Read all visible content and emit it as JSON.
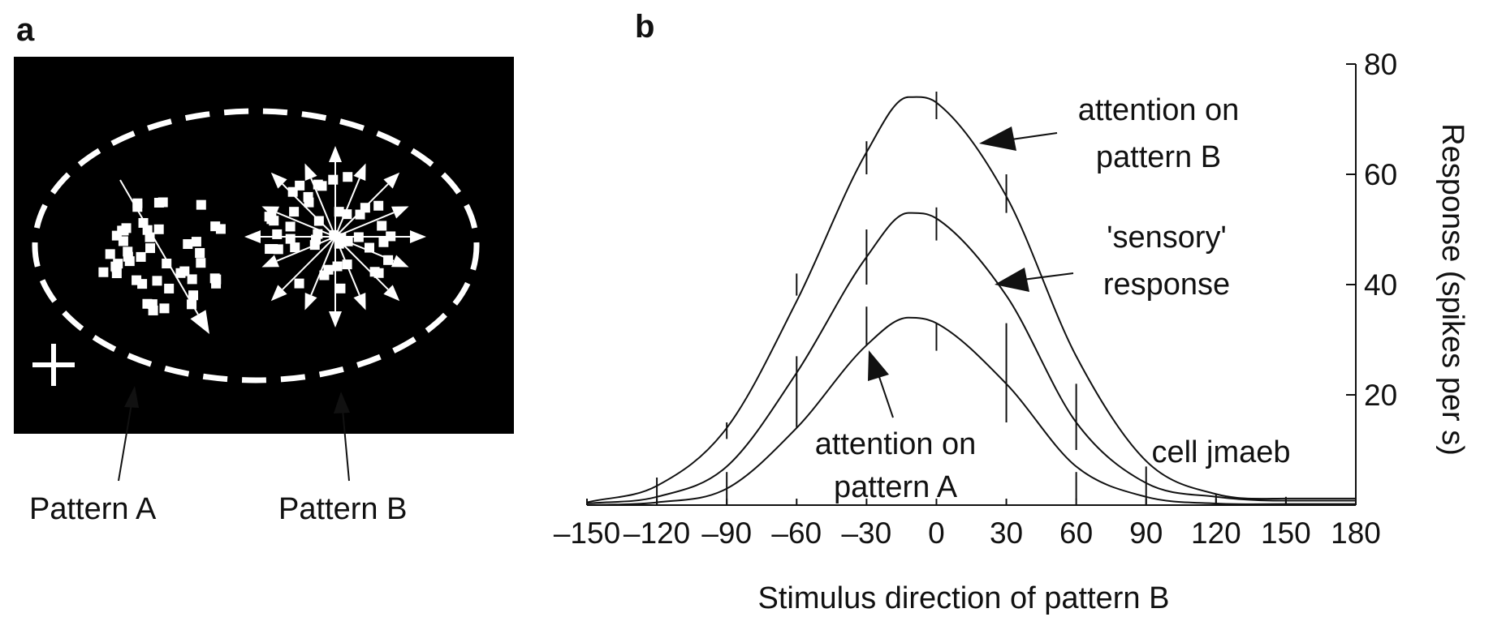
{
  "panel_a": {
    "letter": "a",
    "pattern_a_label": "Pattern A",
    "pattern_b_label": "Pattern B"
  },
  "panel_b": {
    "letter": "b",
    "annotations": {
      "attention_b": [
        "attention on",
        "pattern B"
      ],
      "sensory": [
        "'sensory'",
        "response"
      ],
      "attention_a": [
        "attention on",
        "pattern A"
      ],
      "cell": "cell jmaeb"
    }
  },
  "chart_data": {
    "type": "line",
    "title": "",
    "xlabel": "Stimulus direction of pattern B",
    "ylabel": "Response (spikes per s)",
    "xlim": [
      -150,
      180
    ],
    "ylim": [
      0,
      80
    ],
    "x_ticks": [
      -150,
      -120,
      -90,
      -60,
      -30,
      0,
      30,
      60,
      90,
      120,
      150,
      180
    ],
    "x_tick_labels": [
      "–150",
      "–120",
      "–90",
      "–60",
      "–30",
      "0",
      "30",
      "60",
      "90",
      "120",
      "150",
      "180"
    ],
    "y_ticks": [
      20,
      40,
      60,
      80
    ],
    "y_tick_labels": [
      "20",
      "40",
      "60",
      "80"
    ],
    "y_axis_side": "right",
    "grid": false,
    "series": [
      {
        "name": "attention on pattern B",
        "x": [
          -150,
          -120,
          -90,
          -60,
          -30,
          -12,
          0,
          30,
          60,
          90,
          120,
          150,
          180
        ],
        "y": [
          0.5,
          3.5,
          14,
          37,
          64,
          74,
          73,
          56,
          27,
          8,
          2,
          1.2,
          1.2
        ]
      },
      {
        "name": "'sensory' response",
        "x": [
          -150,
          -120,
          -90,
          -60,
          -30,
          -12,
          0,
          30,
          60,
          90,
          120,
          150,
          180
        ],
        "y": [
          0.3,
          1.5,
          7,
          24,
          45,
          53,
          52,
          38,
          15,
          4,
          1.5,
          0.8,
          0.8
        ]
      },
      {
        "name": "attention on pattern A",
        "x": [
          -150,
          -120,
          -90,
          -60,
          -30,
          -12,
          0,
          30,
          60,
          90,
          120,
          150,
          180
        ],
        "y": [
          0,
          0.5,
          3,
          14,
          29,
          34,
          33,
          22,
          7,
          1.5,
          0.3,
          0.2,
          0.2
        ]
      }
    ],
    "error_bars": [
      {
        "x": -120,
        "low": 0,
        "high": 5
      },
      {
        "x": -90,
        "low": 0,
        "high": 6
      },
      {
        "x": -90,
        "low": 12,
        "high": 15
      },
      {
        "x": -60,
        "low": 14,
        "high": 27
      },
      {
        "x": -60,
        "low": 38,
        "high": 42
      },
      {
        "x": -30,
        "low": 29,
        "high": 36
      },
      {
        "x": -30,
        "low": 40,
        "high": 50
      },
      {
        "x": -30,
        "low": 60,
        "high": 66
      },
      {
        "x": 0,
        "low": 28,
        "high": 33
      },
      {
        "x": 0,
        "low": 48,
        "high": 54
      },
      {
        "x": 0,
        "low": 70,
        "high": 75
      },
      {
        "x": 30,
        "low": 15,
        "high": 33
      },
      {
        "x": 30,
        "low": 53,
        "high": 60
      },
      {
        "x": 60,
        "low": 10,
        "high": 22
      },
      {
        "x": 60,
        "low": 1,
        "high": 6
      },
      {
        "x": 90,
        "low": 0,
        "high": 7
      },
      {
        "x": 120,
        "low": 0,
        "high": 2
      },
      {
        "x": 150,
        "low": 0,
        "high": 1.5
      }
    ]
  }
}
